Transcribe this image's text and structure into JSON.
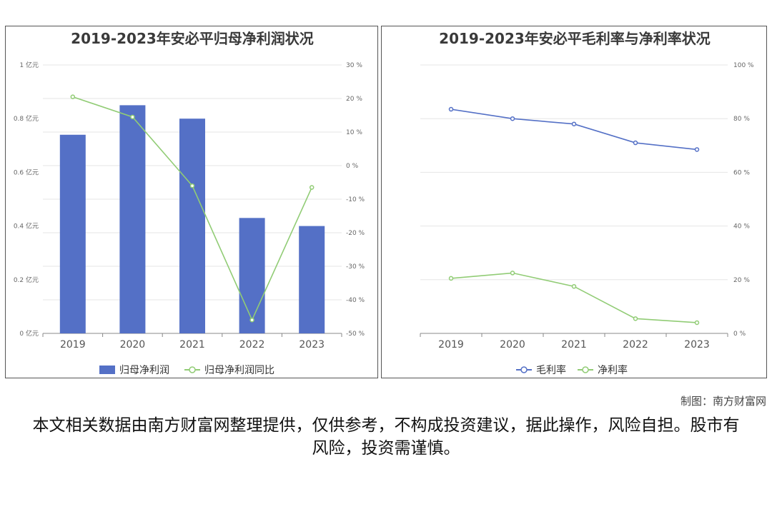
{
  "credit": "制图：南方财富网",
  "disclaimer": "本文相关数据由南方财富网整理提供，仅供参考，不构成投资建议，据此操作，风险自担。股市有风险，投资需谨慎。",
  "chart_data": [
    {
      "type": "bar",
      "title": "2019-2023年安必平归母净利润状况",
      "categories": [
        "2019",
        "2020",
        "2021",
        "2022",
        "2023"
      ],
      "y_left": {
        "ticks": [
          "0 亿元",
          "0.2 亿元",
          "0.4 亿元",
          "0.6 亿元",
          "0.8 亿元",
          "1 亿元"
        ],
        "ylim": [
          0,
          1
        ]
      },
      "y_right": {
        "ticks": [
          "-50 %",
          "-40 %",
          "-30 %",
          "-20 %",
          "-10 %",
          "0 %",
          "10 %",
          "20 %",
          "30 %"
        ],
        "ylim": [
          -50,
          30
        ]
      },
      "series": [
        {
          "name": "归母净利润",
          "kind": "bar",
          "axis": "left",
          "color": "#5470c6",
          "values": [
            0.74,
            0.85,
            0.8,
            0.43,
            0.4
          ]
        },
        {
          "name": "归母净利润同比",
          "kind": "line",
          "axis": "right",
          "color": "#91cc75",
          "values": [
            20.5,
            14.5,
            -6,
            -46,
            -6.5
          ]
        }
      ],
      "grid": true,
      "legend": "bottom"
    },
    {
      "type": "line",
      "title": "2019-2023年安必平毛利率与净利率状况",
      "categories": [
        "2019",
        "2020",
        "2021",
        "2022",
        "2023"
      ],
      "y_right": {
        "ticks": [
          "0 %",
          "20 %",
          "40 %",
          "60 %",
          "80 %",
          "100 %"
        ],
        "ylim": [
          0,
          100
        ]
      },
      "series": [
        {
          "name": "毛利率",
          "color": "#5470c6",
          "values": [
            83.5,
            80,
            78,
            71,
            68.5
          ]
        },
        {
          "name": "净利率",
          "color": "#91cc75",
          "values": [
            20.5,
            22.5,
            17.5,
            5.5,
            4
          ]
        }
      ],
      "grid": true,
      "legend": "bottom"
    }
  ]
}
